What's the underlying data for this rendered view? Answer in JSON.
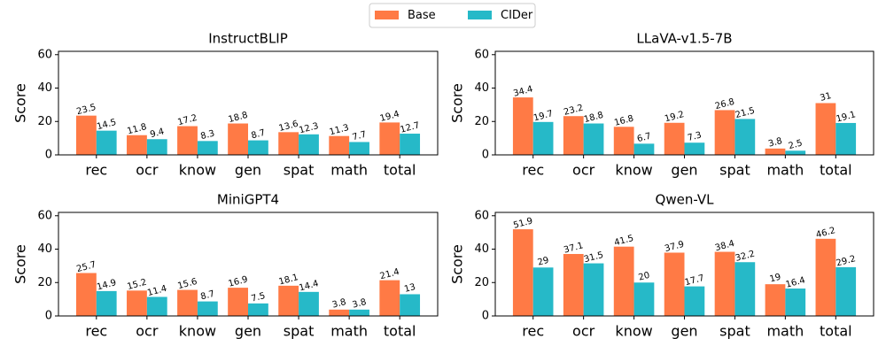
{
  "chart_data": [
    {
      "type": "bar",
      "title": "InstructBLIP",
      "ylabel": "Score",
      "categories": [
        "rec",
        "ocr",
        "know",
        "gen",
        "spat",
        "math",
        "total"
      ],
      "series": [
        {
          "name": "Base",
          "color": "#ff7a45",
          "values": [
            23.5,
            11.8,
            17.2,
            18.8,
            13.6,
            11.3,
            19.4
          ]
        },
        {
          "name": "CIDer",
          "color": "#26b9c8",
          "values": [
            14.5,
            9.4,
            8.3,
            8.7,
            12.3,
            7.7,
            12.7
          ]
        }
      ],
      "ylim": [
        0,
        62
      ],
      "yticks": [
        0,
        20,
        40,
        60
      ]
    },
    {
      "type": "bar",
      "title": "LLaVA-v1.5-7B",
      "ylabel": "Score",
      "categories": [
        "rec",
        "ocr",
        "know",
        "gen",
        "spat",
        "math",
        "total"
      ],
      "series": [
        {
          "name": "Base",
          "color": "#ff7a45",
          "values": [
            34.4,
            23.2,
            16.8,
            19.2,
            26.8,
            3.8,
            31
          ]
        },
        {
          "name": "CIDer",
          "color": "#26b9c8",
          "values": [
            19.7,
            18.8,
            6.7,
            7.3,
            21.5,
            2.5,
            19.1
          ]
        }
      ],
      "ylim": [
        0,
        62
      ],
      "yticks": [
        0,
        20,
        40,
        60
      ]
    },
    {
      "type": "bar",
      "title": "MiniGPT4",
      "ylabel": "Score",
      "categories": [
        "rec",
        "ocr",
        "know",
        "gen",
        "spat",
        "math",
        "total"
      ],
      "series": [
        {
          "name": "Base",
          "color": "#ff7a45",
          "values": [
            25.7,
            15.2,
            15.6,
            16.9,
            18.1,
            3.8,
            21.4
          ]
        },
        {
          "name": "CIDer",
          "color": "#26b9c8",
          "values": [
            14.9,
            11.4,
            8.7,
            7.5,
            14.4,
            3.8,
            13
          ]
        }
      ],
      "ylim": [
        0,
        62
      ],
      "yticks": [
        0,
        20,
        40,
        60
      ]
    },
    {
      "type": "bar",
      "title": "Qwen-VL",
      "ylabel": "Score",
      "categories": [
        "rec",
        "ocr",
        "know",
        "gen",
        "spat",
        "math",
        "total"
      ],
      "series": [
        {
          "name": "Base",
          "color": "#ff7a45",
          "values": [
            51.9,
            37.1,
            41.5,
            37.9,
            38.4,
            19,
            46.2
          ]
        },
        {
          "name": "CIDer",
          "color": "#26b9c8",
          "values": [
            29,
            31.5,
            20,
            17.7,
            32.2,
            16.4,
            29.2
          ]
        }
      ],
      "ylim": [
        0,
        62
      ],
      "yticks": [
        0,
        20,
        40,
        60
      ]
    }
  ]
}
